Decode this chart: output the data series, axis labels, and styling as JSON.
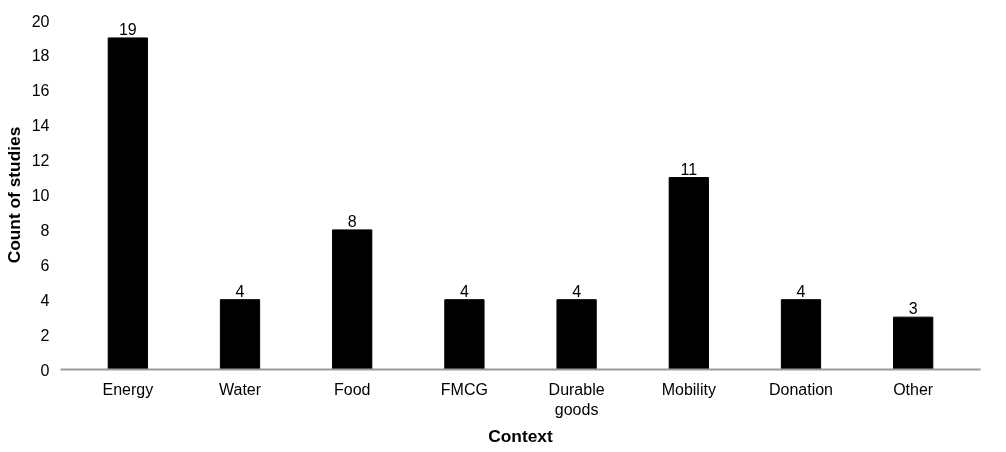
{
  "chart_data": {
    "type": "bar",
    "xlabel": "Context",
    "ylabel": "Count of studies",
    "categories": [
      "Energy",
      "Water",
      "Food",
      "FMCG",
      "Durable\ngoods",
      "Mobility",
      "Donation",
      "Other"
    ],
    "values": [
      19,
      4,
      8,
      4,
      4,
      11,
      4,
      3
    ],
    "color": "#000000",
    "ylim": [
      0,
      20
    ],
    "yticks": [
      0,
      2,
      4,
      6,
      8,
      10,
      12,
      14,
      16,
      18,
      20
    ],
    "grid": false,
    "data_labels": true
  }
}
